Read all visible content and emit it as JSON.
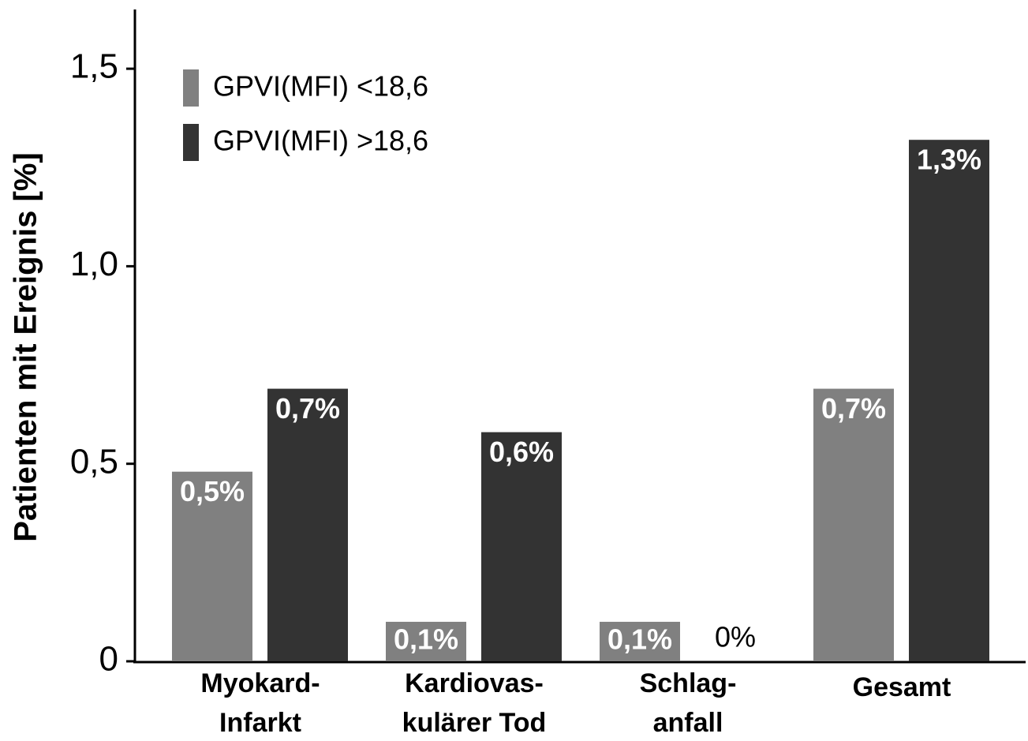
{
  "chart_data": {
    "type": "bar",
    "y_label": "Patienten mit Ereignis [%]",
    "categories": [
      "Myokard-\nInfarkt",
      "Kardiovas-\nkulärer Tod",
      "Schlag-\nanfall",
      "Gesamt"
    ],
    "series": [
      {
        "name": "GPVI(MFI) <18,6",
        "color": "#808080",
        "values": [
          0.48,
          0.1,
          0.1,
          0.69
        ],
        "value_labels": [
          "0,5%",
          "0,1%",
          "0,1%",
          "0,7%"
        ]
      },
      {
        "name": "GPVI(MFI) >18,6",
        "color": "#333333",
        "values": [
          0.69,
          0.58,
          0,
          1.32
        ],
        "value_labels": [
          "0,7%",
          "0,6%",
          "0%",
          "1,3%"
        ]
      }
    ],
    "ylim": [
      0,
      1.65
    ],
    "yticks": [
      0,
      {
        "value": 0.5,
        "label": "0,5"
      },
      {
        "value": 1,
        "label": "1,0"
      },
      {
        "value": 1.5,
        "label": "1,5"
      }
    ]
  }
}
